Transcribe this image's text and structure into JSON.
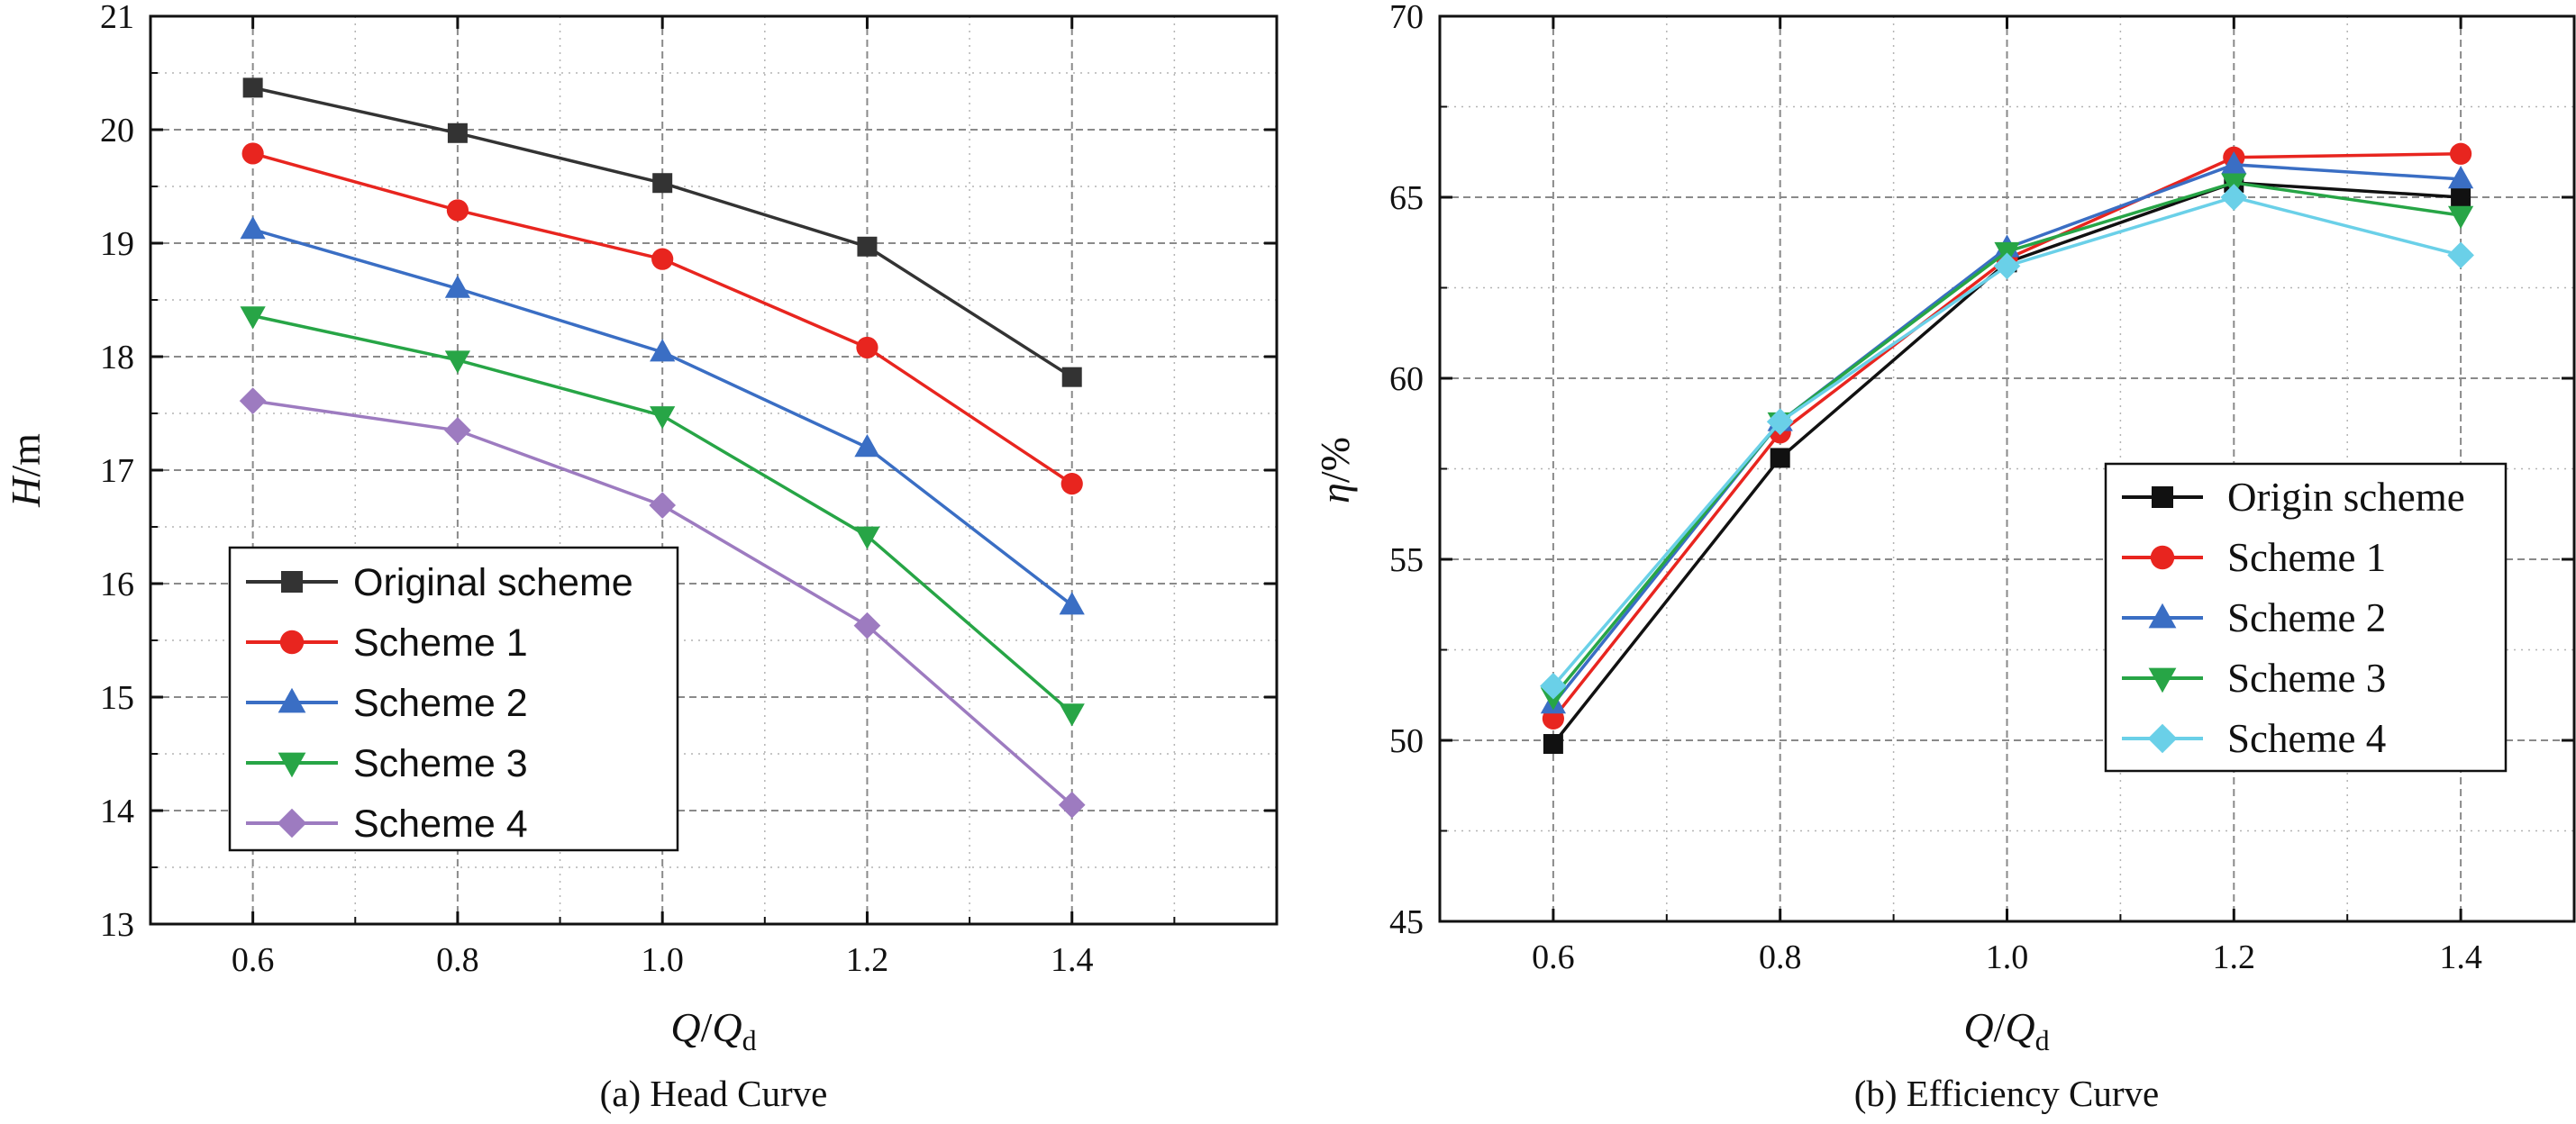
{
  "chart_data": [
    {
      "type": "line",
      "title": "",
      "caption": "(a)  Head Curve",
      "xlabel": {
        "main": "Q",
        "sep": "/",
        "main2": "Q",
        "sub": "d"
      },
      "ylabel": {
        "main": "H",
        "unit": "/m"
      },
      "xlim": [
        0.5,
        1.6
      ],
      "ylim": [
        13,
        21
      ],
      "xticks": [
        "0.6",
        "0.8",
        "1.0",
        "1.2",
        "1.4"
      ],
      "xtick_values": [
        0.6,
        0.8,
        1.0,
        1.2,
        1.4
      ],
      "yticks": [
        "13",
        "14",
        "15",
        "16",
        "17",
        "18",
        "19",
        "20",
        "21"
      ],
      "ytick_values": [
        13,
        14,
        15,
        16,
        17,
        18,
        19,
        20,
        21
      ],
      "grid": true,
      "legend_position": "bottom-left",
      "x": [
        0.6,
        0.8,
        1.0,
        1.2,
        1.4
      ],
      "series": [
        {
          "name": "Original scheme",
          "color": "#333333",
          "marker": "square",
          "values": [
            20.37,
            19.97,
            19.53,
            18.97,
            17.82
          ]
        },
        {
          "name": "Scheme 1",
          "color": "#e8251f",
          "marker": "circle",
          "values": [
            19.79,
            19.29,
            18.86,
            18.08,
            16.88
          ]
        },
        {
          "name": "Scheme 2",
          "color": "#3a6ec4",
          "marker": "triangle-up",
          "values": [
            19.12,
            18.6,
            18.04,
            17.2,
            15.81
          ]
        },
        {
          "name": "Scheme 3",
          "color": "#27a546",
          "marker": "triangle-down",
          "values": [
            18.36,
            17.97,
            17.48,
            16.42,
            14.86
          ]
        },
        {
          "name": "Scheme 4",
          "color": "#9d7bc0",
          "marker": "diamond",
          "values": [
            17.61,
            17.35,
            16.69,
            15.63,
            14.05
          ]
        }
      ]
    },
    {
      "type": "line",
      "title": "",
      "caption": "(b)  Efficiency Curve",
      "xlabel": {
        "main": "Q",
        "sep": "/",
        "main2": "Q",
        "sub": "d"
      },
      "ylabel": {
        "main": "η",
        "unit": "/%"
      },
      "xlim": [
        0.5,
        1.5
      ],
      "ylim": [
        45,
        70
      ],
      "xticks": [
        "0.6",
        "0.8",
        "1.0",
        "1.2",
        "1.4"
      ],
      "xtick_values": [
        0.6,
        0.8,
        1.0,
        1.2,
        1.4
      ],
      "yticks": [
        "45",
        "50",
        "55",
        "60",
        "65",
        "70"
      ],
      "ytick_values": [
        45,
        50,
        55,
        60,
        65,
        70
      ],
      "grid": true,
      "legend_position": "right-middle",
      "x": [
        0.6,
        0.8,
        1.0,
        1.2,
        1.4
      ],
      "series": [
        {
          "name": "Origin scheme",
          "color": "#111111",
          "marker": "square",
          "values": [
            49.9,
            57.8,
            63.2,
            65.4,
            65.0
          ]
        },
        {
          "name": "Scheme 1",
          "color": "#e8251f",
          "marker": "circle",
          "values": [
            50.6,
            58.5,
            63.3,
            66.1,
            66.2
          ]
        },
        {
          "name": "Scheme 2",
          "color": "#3a6ec4",
          "marker": "triangle-up",
          "values": [
            51.0,
            58.8,
            63.6,
            65.9,
            65.5
          ]
        },
        {
          "name": "Scheme 3",
          "color": "#27a546",
          "marker": "triangle-down",
          "values": [
            51.2,
            58.8,
            63.5,
            65.4,
            64.5
          ]
        },
        {
          "name": "Scheme 4",
          "color": "#6ad0e8",
          "marker": "diamond",
          "values": [
            51.5,
            58.8,
            63.1,
            65.0,
            63.4
          ]
        }
      ]
    }
  ]
}
